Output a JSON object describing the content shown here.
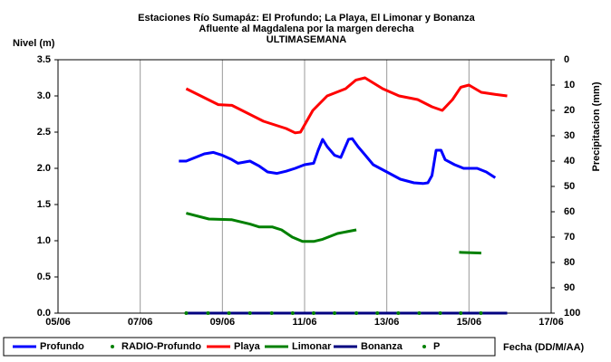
{
  "chart_data": {
    "type": "line",
    "title": "Estaciones Río Sumapáz: El Profundo; La Playa, El Limonar y Bonanza",
    "subtitle": "Afluente al Magdalena por la margen derecha",
    "subtitle2": "ULTIMASEMANA",
    "y_label": "Nivel (m)",
    "y2_label": "Precipitacion (mm)",
    "x_label": "Fecha (DD/M/AA)",
    "xlim": [
      5,
      17
    ],
    "xticks": [
      {
        "value": 5,
        "label": "05/06"
      },
      {
        "value": 7,
        "label": "07/06"
      },
      {
        "value": 9,
        "label": "09/06"
      },
      {
        "value": 11,
        "label": "11/06"
      },
      {
        "value": 13,
        "label": "13/06"
      },
      {
        "value": 15,
        "label": "15/06"
      },
      {
        "value": 17,
        "label": "17/06"
      }
    ],
    "ylim": [
      0,
      3.5
    ],
    "yticks": [
      {
        "value": 0,
        "label": "0.0"
      },
      {
        "value": 0.5,
        "label": "0.5"
      },
      {
        "value": 1,
        "label": "1.0"
      },
      {
        "value": 1.5,
        "label": "1.5"
      },
      {
        "value": 2,
        "label": "2.0"
      },
      {
        "value": 2.5,
        "label": "2.5"
      },
      {
        "value": 3,
        "label": "3.0"
      },
      {
        "value": 3.5,
        "label": "3.5"
      }
    ],
    "y2lim": [
      100,
      0
    ],
    "y2ticks": [
      0,
      10,
      20,
      30,
      40,
      50,
      60,
      70,
      80,
      90,
      100
    ],
    "grid": "x",
    "series": [
      {
        "name": "Profundo",
        "color": "#0000ff",
        "style": "line",
        "x": [
          7.94,
          8.12,
          8.34,
          8.56,
          8.78,
          9.0,
          9.23,
          9.38,
          9.67,
          9.9,
          10.1,
          10.33,
          10.55,
          10.77,
          11.0,
          11.22,
          11.33,
          11.44,
          11.55,
          11.73,
          11.88,
          12.07,
          12.16,
          12.3,
          12.45,
          12.67,
          13.0,
          13.33,
          13.66,
          13.88,
          14.0,
          14.1,
          14.2,
          14.32,
          14.42,
          14.65,
          14.87,
          15.2,
          15.42,
          15.64
        ],
        "values": [
          2.1,
          2.1,
          2.15,
          2.2,
          2.22,
          2.18,
          2.12,
          2.07,
          2.1,
          2.03,
          1.95,
          1.93,
          1.96,
          2.0,
          2.05,
          2.07,
          2.25,
          2.4,
          2.3,
          2.18,
          2.15,
          2.4,
          2.41,
          2.3,
          2.2,
          2.05,
          1.95,
          1.85,
          1.8,
          1.79,
          1.8,
          1.9,
          2.25,
          2.25,
          2.12,
          2.05,
          2.0,
          2.0,
          1.95,
          1.87
        ]
      },
      {
        "name": "RADIO-Profundo",
        "color": "#008000",
        "style": "dots",
        "x": [],
        "values": []
      },
      {
        "name": "Playa",
        "color": "#ff0000",
        "style": "line",
        "x": [
          8.12,
          8.9,
          9.23,
          10.0,
          10.55,
          10.77,
          10.9,
          11.2,
          11.55,
          12.0,
          12.25,
          12.47,
          12.9,
          13.3,
          13.75,
          14.1,
          14.35,
          14.6,
          14.8,
          15.0,
          15.3,
          15.65,
          15.93
        ],
        "values": [
          3.1,
          2.88,
          2.87,
          2.65,
          2.55,
          2.49,
          2.5,
          2.8,
          3.0,
          3.1,
          3.22,
          3.25,
          3.1,
          3.0,
          2.95,
          2.85,
          2.8,
          2.95,
          3.12,
          3.15,
          3.05,
          3.02,
          3.0
        ]
      },
      {
        "name": "Limonar",
        "color": "#008000",
        "style": "line",
        "x": [
          8.12,
          8.67,
          9.23,
          9.67,
          9.9,
          10.22,
          10.44,
          10.7,
          10.95,
          11.22,
          11.44,
          11.8,
          12.26,
          13.5,
          14.76,
          15.3
        ],
        "values": [
          1.38,
          1.3,
          1.29,
          1.23,
          1.19,
          1.19,
          1.15,
          1.05,
          0.99,
          0.99,
          1.02,
          1.1,
          1.15,
          null,
          0.84,
          0.83
        ]
      },
      {
        "name": "Bonanza",
        "color": "#000080",
        "style": "line",
        "x": [
          8.12,
          15.93
        ],
        "values": [
          0,
          0
        ]
      },
      {
        "name": "P",
        "color": "#008000",
        "style": "dots",
        "axis": "y2",
        "x": [
          8.12,
          8.65,
          9.16,
          9.67,
          10.2,
          10.71,
          11.22,
          11.73,
          12.26,
          12.77,
          13.28,
          13.79,
          14.3,
          14.8,
          15.29
        ],
        "values": [
          100,
          100,
          100,
          100,
          100,
          100,
          100,
          100,
          100,
          100,
          100,
          100,
          100,
          100,
          100
        ]
      }
    ]
  }
}
